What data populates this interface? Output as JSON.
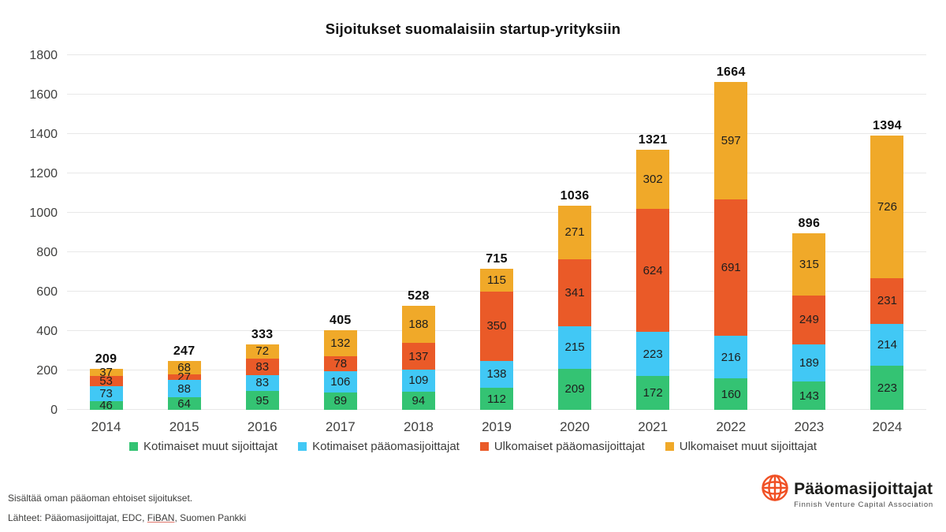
{
  "title": "Sijoitukset suomalaisiin startup-yrityksiin",
  "chart_data": {
    "type": "bar",
    "stacked": true,
    "title": "Sijoitukset suomalaisiin startup-yrityksiin",
    "categories": [
      "2014",
      "2015",
      "2016",
      "2017",
      "2018",
      "2019",
      "2020",
      "2021",
      "2022",
      "2023",
      "2024"
    ],
    "series": [
      {
        "name": "Kotimaiset muut sijoittajat",
        "color": "#34c373",
        "values": [
          46,
          64,
          95,
          89,
          94,
          112,
          209,
          172,
          160,
          143,
          223
        ]
      },
      {
        "name": "Kotimaiset pääomasijoittajat",
        "color": "#41c8f5",
        "values": [
          73,
          88,
          83,
          106,
          109,
          138,
          215,
          223,
          216,
          189,
          214
        ]
      },
      {
        "name": "Ulkomaiset pääomasijoittajat",
        "color": "#ea5a28",
        "values": [
          53,
          27,
          83,
          78,
          137,
          350,
          341,
          624,
          691,
          249,
          231
        ]
      },
      {
        "name": "Ulkomaiset muut sijoittajat",
        "color": "#f0a929",
        "values": [
          37,
          68,
          72,
          132,
          188,
          115,
          271,
          302,
          597,
          315,
          726
        ]
      }
    ],
    "totals": [
      209,
      247,
      333,
      405,
      528,
      715,
      1036,
      1321,
      1664,
      896,
      1394
    ],
    "y_ticks": [
      0,
      200,
      400,
      600,
      800,
      1000,
      1200,
      1400,
      1600,
      1800
    ],
    "ylim": [
      0,
      1800
    ],
    "xlabel": "",
    "ylabel": "",
    "grid": true,
    "legend_position": "bottom"
  },
  "footer": {
    "note": "Sisältää oman pääoman ehtoiset sijoitukset.",
    "sources_prefix": "Lähteet: Pääomasijoittajat, EDC, ",
    "sources_link": "FiBAN",
    "sources_suffix": ", Suomen Pankki"
  },
  "logo": {
    "name": "Pääomasijoittajat",
    "subtitle": "Finnish Venture Capital Association",
    "icon": "globe-icon",
    "color": "#f05024"
  }
}
